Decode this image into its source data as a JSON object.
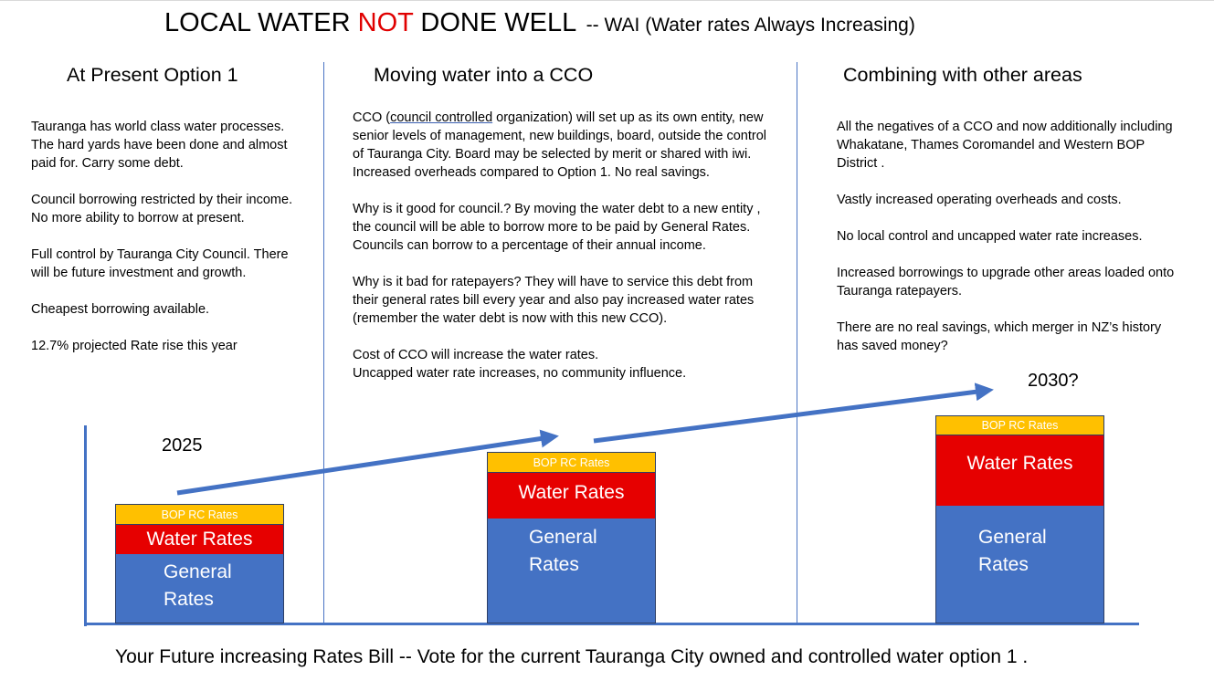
{
  "title": {
    "main_before": "LOCAL WATER ",
    "main_red": "NOT",
    "main_after": " DONE WELL",
    "sub": "--  WAI (Water rates Always Increasing)"
  },
  "columns": [
    {
      "heading": "At Present Option 1",
      "paragraphs": [
        "Tauranga has world class water processes. The hard yards have  been done and almost paid for.   Carry  some debt.",
        "Council borrowing restricted by their income.  No more ability to borrow at present.",
        "Full control by Tauranga City Council. There will be future investment and growth.",
        "Cheapest borrowing available.",
        "12.7%  projected Rate rise this year"
      ]
    },
    {
      "heading": "Moving water into a CCO",
      "p1_pre": "CCO (",
      "p1_link": "council controlled",
      "p1_post": " organization) will set up as its own entity, new senior levels of management, new buildings, board, outside the control of Tauranga City.  Board may be selected by merit or shared with iwi. Increased overheads compared to  Option 1. No real savings.",
      "paragraphs": [
        "Why is it good for council.?   By moving the water debt to a new entity , the council will be able to borrow more to be paid by General Rates. Councils can borrow to a percentage of their annual income.",
        "Why is it bad for ratepayers? They will have to service this debt from their general rates bill every year and also pay increased water rates (remember the water debt is now with this new CCO)."
      ],
      "last_line1": "Cost of CCO will increase the water rates.",
      "last_line2": "Uncapped water rate increases, no community influence."
    },
    {
      "heading": "Combining with other areas",
      "paragraphs": [
        "All the negatives of a CCO and  now additionally including Whakatane, Thames Coromandel and Western BOP District .",
        "Vastly increased operating overheads and costs.",
        "No local control and uncapped water rate increases.",
        "Increased borrowings to upgrade other areas loaded onto Tauranga ratepayers.",
        "There are no real savings, which merger in NZ’s history has saved money?"
      ]
    }
  ],
  "years": {
    "start": "2025",
    "end": "2030?"
  },
  "bars": [
    {
      "bop_label": "BOP RC Rates",
      "water_label": "Water Rates",
      "general_line1": "General",
      "general_line2": "Rates"
    },
    {
      "bop_label": "BOP RC Rates",
      "water_label": "Water Rates",
      "general_line1": "General",
      "general_line2": "Rates"
    },
    {
      "bop_label": "BOP RC Rates",
      "water_label": "Water Rates",
      "general_line1": "General",
      "general_line2": "Rates"
    }
  ],
  "colors": {
    "bop": "#ffc000",
    "water": "#e60000",
    "general": "#4472c4",
    "accent_red": "#e00000",
    "arrow": "#4472c4"
  },
  "footer": "Your Future increasing Rates Bill  -- Vote for the current Tauranga City owned and controlled water option 1 ."
}
